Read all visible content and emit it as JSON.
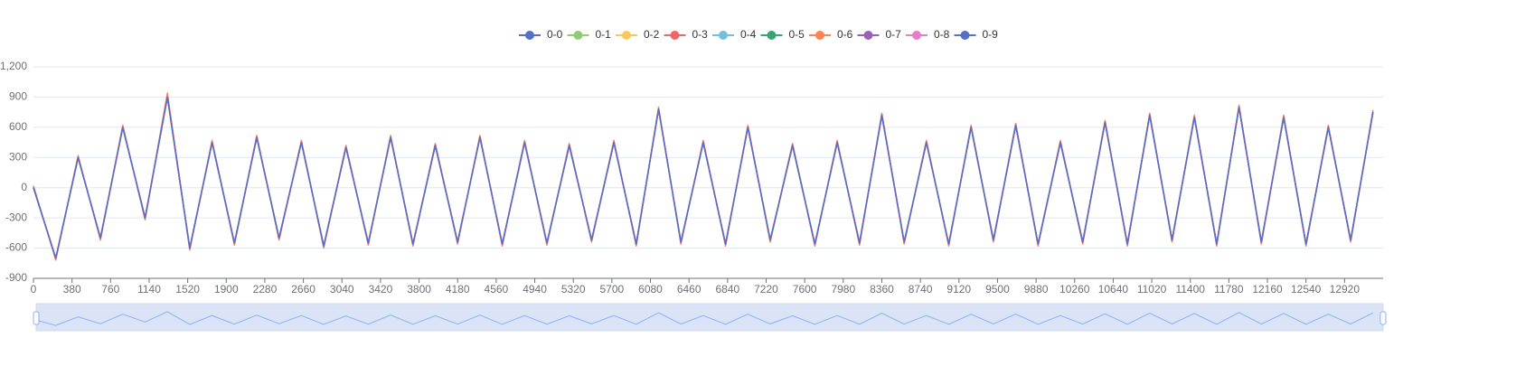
{
  "chart_data": {
    "type": "line",
    "x": [
      0,
      220,
      440,
      660,
      880,
      1100,
      1320,
      1540,
      1760,
      1980,
      2200,
      2420,
      2640,
      2860,
      3080,
      3300,
      3520,
      3740,
      3960,
      4180,
      4400,
      4620,
      4840,
      5060,
      5280,
      5500,
      5720,
      5940,
      6160,
      6380,
      6600,
      6820,
      7040,
      7260,
      7480,
      7700,
      7920,
      8140,
      8360,
      8580,
      8800,
      9020,
      9240,
      9460,
      9680,
      9900,
      10120,
      10340,
      10560,
      10780,
      11000,
      11220,
      11440,
      11660,
      11880,
      12100,
      12320,
      12540,
      12760,
      12980,
      13200
    ],
    "series": [
      {
        "name": "0-0",
        "color": "#5470c6",
        "values": [
          0,
          -700,
          300,
          -500,
          600,
          -300,
          900,
          -600,
          450,
          -550,
          500,
          -500,
          450,
          -580,
          400,
          -550,
          500,
          -560,
          420,
          -540,
          500,
          -560,
          450,
          -550,
          420,
          -520,
          450,
          -560,
          780,
          -540,
          450,
          -560,
          600,
          -520,
          420,
          -560,
          450,
          -550,
          720,
          -540,
          450,
          -560,
          600,
          -520,
          620,
          -560,
          450,
          -540,
          650,
          -560,
          720,
          -520,
          700,
          -560,
          800,
          -540,
          700,
          -560,
          600,
          -520,
          750
        ]
      },
      {
        "name": "0-1",
        "color": "#91cc75",
        "values": [
          0,
          -700,
          300,
          -500,
          600,
          -300,
          900,
          -600,
          450,
          -550,
          500,
          -500,
          450,
          -580,
          400,
          -550,
          500,
          -560,
          420,
          -540,
          500,
          -560,
          450,
          -550,
          420,
          -520,
          450,
          -560,
          780,
          -540,
          450,
          -560,
          600,
          -520,
          420,
          -560,
          450,
          -550,
          720,
          -540,
          450,
          -560,
          600,
          -520,
          620,
          -560,
          450,
          -540,
          650,
          -560,
          720,
          -520,
          700,
          -560,
          800,
          -540,
          700,
          -560,
          600,
          -520,
          750
        ]
      },
      {
        "name": "0-2",
        "color": "#fac858",
        "values": [
          0,
          -700,
          300,
          -500,
          600,
          -300,
          900,
          -600,
          450,
          -550,
          500,
          -500,
          450,
          -580,
          400,
          -550,
          500,
          -560,
          420,
          -540,
          500,
          -560,
          450,
          -550,
          420,
          -520,
          450,
          -560,
          780,
          -540,
          450,
          -560,
          600,
          -520,
          420,
          -560,
          450,
          -550,
          720,
          -540,
          450,
          -560,
          600,
          -520,
          620,
          -560,
          450,
          -540,
          650,
          -560,
          720,
          -520,
          700,
          -560,
          800,
          -540,
          700,
          -560,
          600,
          -520,
          750
        ]
      },
      {
        "name": "0-3",
        "color": "#ee6666",
        "values": [
          10,
          -710,
          310,
          -510,
          610,
          -310,
          930,
          -610,
          460,
          -560,
          510,
          -510,
          460,
          -590,
          410,
          -560,
          510,
          -570,
          430,
          -550,
          510,
          -570,
          460,
          -560,
          430,
          -530,
          460,
          -570,
          790,
          -550,
          460,
          -570,
          610,
          -530,
          430,
          -570,
          460,
          -560,
          730,
          -550,
          460,
          -570,
          610,
          -530,
          630,
          -570,
          460,
          -550,
          660,
          -570,
          730,
          -530,
          710,
          -570,
          810,
          -550,
          710,
          -570,
          610,
          -530,
          760
        ]
      },
      {
        "name": "0-4",
        "color": "#73c0de",
        "values": [
          0,
          -700,
          300,
          -500,
          600,
          -300,
          900,
          -600,
          450,
          -550,
          500,
          -500,
          450,
          -580,
          400,
          -550,
          500,
          -560,
          420,
          -540,
          500,
          -560,
          450,
          -550,
          420,
          -520,
          450,
          -560,
          780,
          -540,
          450,
          -560,
          600,
          -520,
          420,
          -560,
          450,
          -550,
          720,
          -540,
          450,
          -560,
          600,
          -520,
          620,
          -560,
          450,
          -540,
          650,
          -560,
          720,
          -520,
          700,
          -560,
          800,
          -540,
          700,
          -560,
          600,
          -520,
          750
        ]
      },
      {
        "name": "0-5",
        "color": "#3ba272",
        "values": [
          0,
          -700,
          300,
          -500,
          600,
          -300,
          900,
          -600,
          450,
          -550,
          500,
          -500,
          450,
          -580,
          400,
          -550,
          500,
          -560,
          420,
          -540,
          500,
          -560,
          450,
          -550,
          420,
          -520,
          450,
          -560,
          780,
          -540,
          450,
          -560,
          600,
          -520,
          420,
          -560,
          450,
          -550,
          720,
          -540,
          450,
          -560,
          600,
          -520,
          620,
          -560,
          450,
          -540,
          650,
          -560,
          720,
          -520,
          700,
          -560,
          800,
          -540,
          700,
          -560,
          600,
          -520,
          750
        ]
      },
      {
        "name": "0-6",
        "color": "#fc8452",
        "values": [
          20,
          -720,
          320,
          -520,
          620,
          -320,
          940,
          -620,
          470,
          -570,
          520,
          -520,
          470,
          -600,
          420,
          -570,
          520,
          -580,
          440,
          -560,
          520,
          -580,
          470,
          -570,
          440,
          -540,
          470,
          -580,
          800,
          -560,
          470,
          -580,
          620,
          -540,
          440,
          -580,
          470,
          -570,
          740,
          -560,
          470,
          -580,
          620,
          -540,
          640,
          -580,
          470,
          -560,
          670,
          -580,
          740,
          -540,
          720,
          -580,
          820,
          -560,
          720,
          -580,
          620,
          -540,
          770
        ]
      },
      {
        "name": "0-7",
        "color": "#9a60b4",
        "values": [
          0,
          -700,
          300,
          -500,
          600,
          -300,
          900,
          -600,
          450,
          -550,
          500,
          -500,
          450,
          -580,
          400,
          -550,
          500,
          -560,
          420,
          -540,
          500,
          -560,
          450,
          -550,
          420,
          -520,
          450,
          -560,
          780,
          -540,
          450,
          -560,
          600,
          -520,
          420,
          -560,
          450,
          -550,
          720,
          -540,
          450,
          -560,
          600,
          -520,
          620,
          -560,
          450,
          -540,
          650,
          -560,
          720,
          -520,
          700,
          -560,
          800,
          -540,
          700,
          -560,
          600,
          -520,
          750
        ]
      },
      {
        "name": "0-8",
        "color": "#ea7ccc",
        "values": [
          0,
          -700,
          300,
          -500,
          600,
          -300,
          900,
          -600,
          450,
          -550,
          500,
          -500,
          450,
          -580,
          400,
          -550,
          500,
          -560,
          420,
          -540,
          500,
          -560,
          450,
          -550,
          420,
          -520,
          450,
          -560,
          780,
          -540,
          450,
          -560,
          600,
          -520,
          420,
          -560,
          450,
          -550,
          720,
          -540,
          450,
          -560,
          600,
          -520,
          620,
          -560,
          450,
          -540,
          650,
          -560,
          720,
          -520,
          700,
          -560,
          800,
          -540,
          700,
          -560,
          600,
          -520,
          750
        ]
      },
      {
        "name": "0-9",
        "color": "#5470c6",
        "values": [
          0,
          -700,
          300,
          -500,
          600,
          -300,
          900,
          -600,
          450,
          -550,
          500,
          -500,
          450,
          -580,
          400,
          -550,
          500,
          -560,
          420,
          -540,
          500,
          -560,
          450,
          -550,
          420,
          -520,
          450,
          -560,
          780,
          -540,
          450,
          -560,
          600,
          -520,
          420,
          -560,
          450,
          -550,
          720,
          -540,
          450,
          -560,
          600,
          -520,
          620,
          -560,
          450,
          -540,
          650,
          -560,
          720,
          -520,
          700,
          -560,
          800,
          -540,
          700,
          -560,
          600,
          -520,
          750
        ]
      }
    ],
    "xlim": [
      0,
      13300
    ],
    "xticks": [
      0,
      380,
      760,
      1140,
      1520,
      1900,
      2280,
      2660,
      3040,
      3420,
      3800,
      4180,
      4560,
      4940,
      5320,
      5700,
      6080,
      6460,
      6840,
      7220,
      7600,
      7980,
      8360,
      8740,
      9120,
      9500,
      9880,
      10260,
      10640,
      11020,
      11400,
      11780,
      12160,
      12540,
      12920
    ],
    "ylim": [
      -900,
      1200
    ],
    "yticks": [
      -900,
      -600,
      -300,
      0,
      300,
      600,
      900,
      {
        "value": 1200,
        "label": "1,200"
      }
    ],
    "grid": true,
    "legend_position": "top"
  }
}
